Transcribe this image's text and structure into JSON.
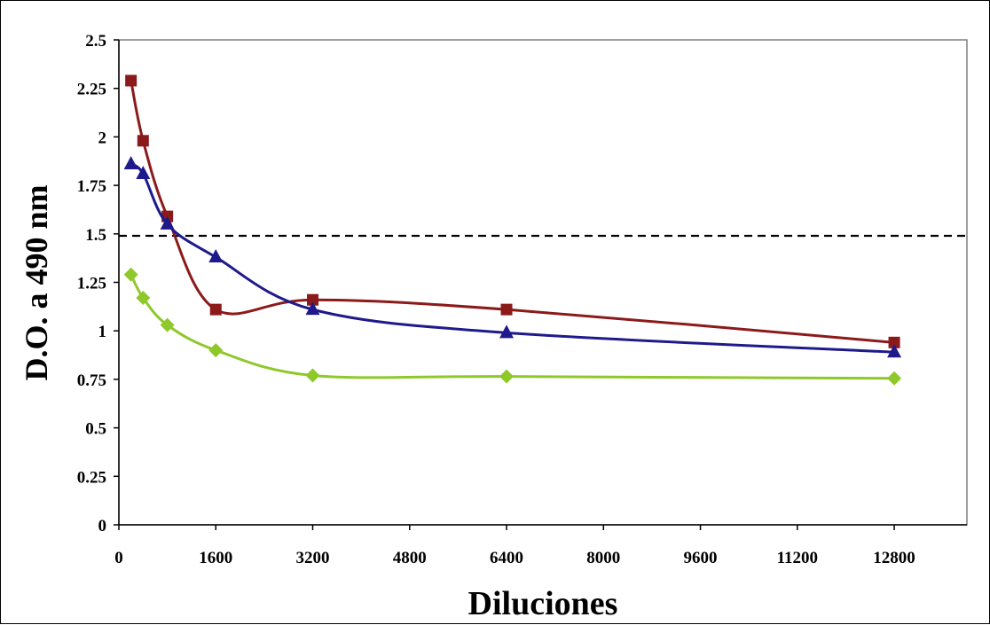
{
  "chart_data": {
    "type": "line",
    "title": "",
    "xlabel": "Diluciones",
    "ylabel": "D.O. a 490 nm",
    "xlim": [
      0,
      14000
    ],
    "ylim": [
      0,
      2.5
    ],
    "xticks": [
      0,
      1600,
      3200,
      4800,
      6400,
      8000,
      9600,
      11200,
      12800
    ],
    "xtick_labels": [
      "0",
      "1600",
      "3200",
      "4800",
      "6400",
      "8000",
      "9600",
      "11200",
      "12800"
    ],
    "yticks": [
      0,
      0.25,
      0.5,
      0.75,
      1,
      1.25,
      1.5,
      1.75,
      2,
      2.25,
      2.5
    ],
    "ytick_labels": [
      "0",
      "0.25",
      "0.5",
      "0.75",
      "1",
      "1.25",
      "1.5",
      "1.75",
      "2",
      "2.25",
      "2.5"
    ],
    "grid": false,
    "legend": "none",
    "reference_line": {
      "y": 1.49,
      "style": "dashed",
      "color": "#000000"
    },
    "series": [
      {
        "marker": "square",
        "color": "#8b1a1a",
        "x": [
          200,
          400,
          800,
          1600,
          3200,
          6400,
          12800
        ],
        "y": [
          2.29,
          1.98,
          1.59,
          1.11,
          1.16,
          1.11,
          0.94
        ]
      },
      {
        "marker": "triangle",
        "color": "#1f1a8c",
        "x": [
          200,
          400,
          800,
          1600,
          3200,
          6400,
          12800
        ],
        "y": [
          1.86,
          1.81,
          1.55,
          1.38,
          1.11,
          0.99,
          0.89
        ]
      },
      {
        "marker": "diamond",
        "color": "#8fc82a",
        "x": [
          200,
          400,
          800,
          1600,
          3200,
          6400,
          12800
        ],
        "y": [
          1.29,
          1.17,
          1.03,
          0.9,
          0.77,
          0.765,
          0.755
        ]
      }
    ]
  }
}
